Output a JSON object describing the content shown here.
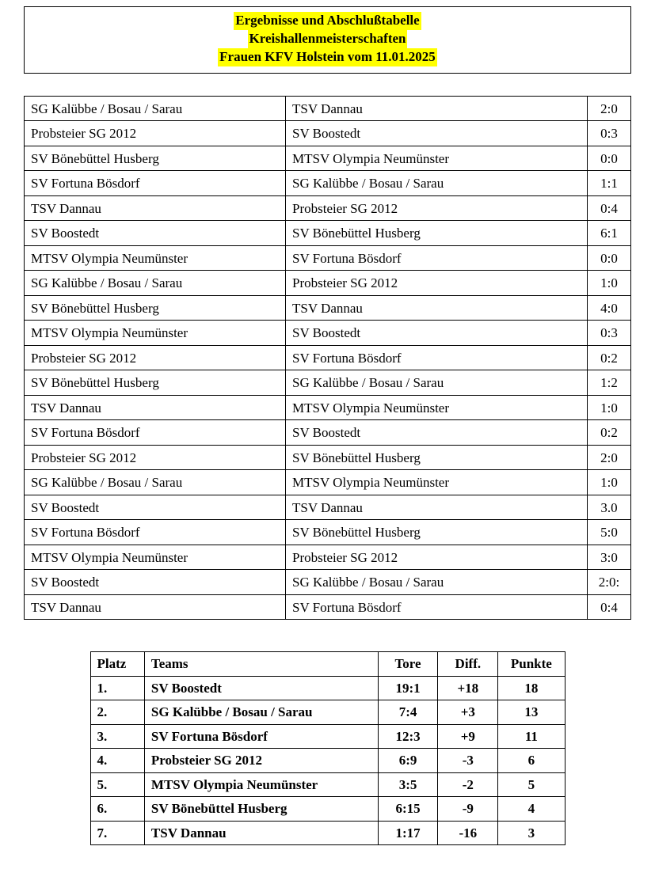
{
  "header": {
    "line1": "Ergebnisse und Abschlußtabelle",
    "line2": "Kreishallenmeisterschaften",
    "line3": "Frauen KFV Holstein vom 11.01.2025"
  },
  "results": {
    "rows": [
      {
        "a": "SG Kalübbe / Bosau / Sarau",
        "b": "TSV Dannau",
        "s": "2:0"
      },
      {
        "a": "Probsteier SG 2012",
        "b": "SV Boostedt",
        "s": "0:3"
      },
      {
        "a": "SV Bönebüttel Husberg",
        "b": "MTSV Olympia Neumünster",
        "s": "0:0"
      },
      {
        "a": "SV Fortuna Bösdorf",
        "b": "SG Kalübbe / Bosau / Sarau",
        "s": "1:1"
      },
      {
        "a": "TSV Dannau",
        "b": "Probsteier SG 2012",
        "s": "0:4"
      },
      {
        "a": "SV Boostedt",
        "b": "SV Bönebüttel Husberg",
        "s": "6:1"
      },
      {
        "a": "MTSV Olympia Neumünster",
        "b": "SV Fortuna Bösdorf",
        "s": "0:0"
      },
      {
        "a": "SG Kalübbe / Bosau / Sarau",
        "b": "Probsteier SG 2012",
        "s": "1:0"
      },
      {
        "a": "SV Bönebüttel Husberg",
        "b": "TSV Dannau",
        "s": "4:0"
      },
      {
        "a": "MTSV Olympia Neumünster",
        "b": "SV Boostedt",
        "s": "0:3"
      },
      {
        "a": "Probsteier SG 2012",
        "b": "SV Fortuna Bösdorf",
        "s": "0:2"
      },
      {
        "a": "SV Bönebüttel Husberg",
        "b": "SG Kalübbe / Bosau / Sarau",
        "s": "1:2"
      },
      {
        "a": "TSV Dannau",
        "b": "MTSV Olympia Neumünster",
        "s": "1:0"
      },
      {
        "a": "SV Fortuna Bösdorf",
        "b": "SV Boostedt",
        "s": "0:2"
      },
      {
        "a": "Probsteier SG 2012",
        "b": "SV Bönebüttel Husberg",
        "s": "2:0"
      },
      {
        "a": "SG Kalübbe / Bosau / Sarau",
        "b": "MTSV Olympia Neumünster",
        "s": "1:0"
      },
      {
        "a": "SV Boostedt",
        "b": "TSV Dannau",
        "s": "3.0"
      },
      {
        "a": "SV Fortuna Bösdorf",
        "b": "SV Bönebüttel Husberg",
        "s": "5:0"
      },
      {
        "a": "MTSV Olympia Neumünster",
        "b": "Probsteier SG 2012",
        "s": "3:0"
      },
      {
        "a": "SV Boostedt",
        "b": "SG Kalübbe / Bosau / Sarau",
        "s": "2:0:"
      },
      {
        "a": "TSV Dannau",
        "b": "SV Fortuna Bösdorf",
        "s": "0:4"
      }
    ]
  },
  "standings": {
    "headers": {
      "platz": "Platz",
      "teams": "Teams",
      "tore": "Tore",
      "diff": "Diff.",
      "punkte": "Punkte"
    },
    "rows": [
      {
        "platz": "1.",
        "team": "SV Boostedt",
        "tore": "19:1",
        "diff": "+18",
        "punkte": "18"
      },
      {
        "platz": "2.",
        "team": "SG Kalübbe / Bosau / Sarau",
        "tore": "7:4",
        "diff": "+3",
        "punkte": "13"
      },
      {
        "platz": "3.",
        "team": "SV Fortuna Bösdorf",
        "tore": "12:3",
        "diff": "+9",
        "punkte": "11"
      },
      {
        "platz": "4.",
        "team": "Probsteier SG 2012",
        "tore": "6:9",
        "diff": "-3",
        "punkte": "6"
      },
      {
        "platz": "5.",
        "team": "MTSV Olympia Neumünster",
        "tore": "3:5",
        "diff": "-2",
        "punkte": "5"
      },
      {
        "platz": "6.",
        "team": "SV Bönebüttel Husberg",
        "tore": "6:15",
        "diff": "-9",
        "punkte": "4"
      },
      {
        "platz": "7.",
        "team": "TSV Dannau",
        "tore": "1:17",
        "diff": "-16",
        "punkte": "3"
      }
    ]
  }
}
